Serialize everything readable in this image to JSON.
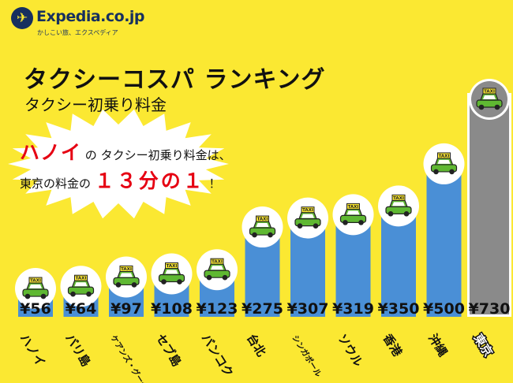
{
  "logo": {
    "name": "Expedia.co.jp",
    "tagline": "かしこい旅、エクスペディア"
  },
  "title": "タクシーコスパ ランキング",
  "subtitle": "タクシー初乗り料金",
  "callout": {
    "line1_highlight": "ハノイ",
    "line1_rest1": "の",
    "line1_rest2": "タクシー初乗り料金は、",
    "line2_start": "東京の料金の",
    "line2_highlight": "１３分の１",
    "line2_end": "！"
  },
  "taxi_sign": "TAXI",
  "colors": {
    "background": "#fbe832",
    "bar": "#4a8fd6",
    "bar_highlight": "#8a8a8a",
    "accent": "#e60012"
  },
  "chart_data": {
    "type": "bar",
    "title": "タクシーコスパ ランキング",
    "subtitle": "タクシー初乗り料金",
    "categories": [
      "ハノイ",
      "バリ島",
      "ケアンズ・グーグル",
      "セブ島",
      "バンコク",
      "台北",
      "シンガポール",
      "ソウル",
      "香港",
      "沖縄",
      "東京"
    ],
    "values": [
      56,
      64,
      97,
      108,
      123,
      275,
      307,
      319,
      350,
      500,
      730
    ],
    "value_labels": [
      "¥56",
      "¥64",
      "¥97",
      "¥108",
      "¥123",
      "¥275",
      "¥307",
      "¥319",
      "¥350",
      "¥500",
      "¥730"
    ],
    "currency": "¥",
    "highlight": "東京",
    "ylim": [
      0,
      730
    ],
    "grid": false,
    "legend": "none"
  }
}
